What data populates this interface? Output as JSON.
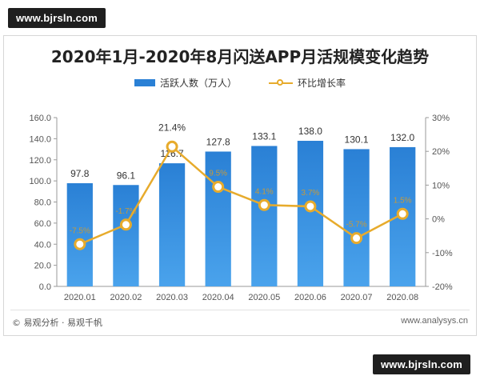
{
  "watermark": {
    "top": "www.bjrsln.com",
    "bottom": "www.bjrsln.com"
  },
  "chart_data": {
    "type": "bar+line",
    "title": "2020年1月-2020年8月闪送APP月活规模变化趋势",
    "categories": [
      "2020.01",
      "2020.02",
      "2020.03",
      "2020.04",
      "2020.05",
      "2020.06",
      "2020.07",
      "2020.08"
    ],
    "series": [
      {
        "name": "活跃人数（万人）",
        "type": "bar",
        "axis": "left",
        "values": [
          97.8,
          96.1,
          116.7,
          127.8,
          133.1,
          138.0,
          130.1,
          132.0
        ],
        "color": "#2a80d5"
      },
      {
        "name": "环比增长率",
        "type": "line",
        "axis": "right",
        "values": [
          -7.5,
          -1.7,
          21.4,
          9.5,
          4.1,
          3.7,
          -5.7,
          1.5
        ],
        "color": "#e7ab2c"
      }
    ],
    "value_labels": [
      "97.8",
      "96.1",
      "116.7",
      "127.8",
      "133.1",
      "138.0",
      "130.1",
      "132.0"
    ],
    "percent_labels": [
      "-7.5%",
      "-1.7%",
      "21.4%",
      "9.5%",
      "4.1%",
      "3.7%",
      "-5.7%",
      "1.5%"
    ],
    "y_left": {
      "min": 0,
      "max": 160,
      "ticks": [
        "0.0",
        "20.0",
        "40.0",
        "60.0",
        "80.0",
        "100.0",
        "120.0",
        "140.0",
        "160.0"
      ]
    },
    "y_right": {
      "min": -20,
      "max": 30,
      "ticks": [
        "-20%",
        "-10%",
        "0%",
        "10%",
        "20%",
        "30%"
      ]
    },
    "grid": false,
    "legend": "top-center"
  },
  "footer": {
    "source": "© 易观分析 · 易观千帆",
    "url": "www.analysys.cn"
  }
}
